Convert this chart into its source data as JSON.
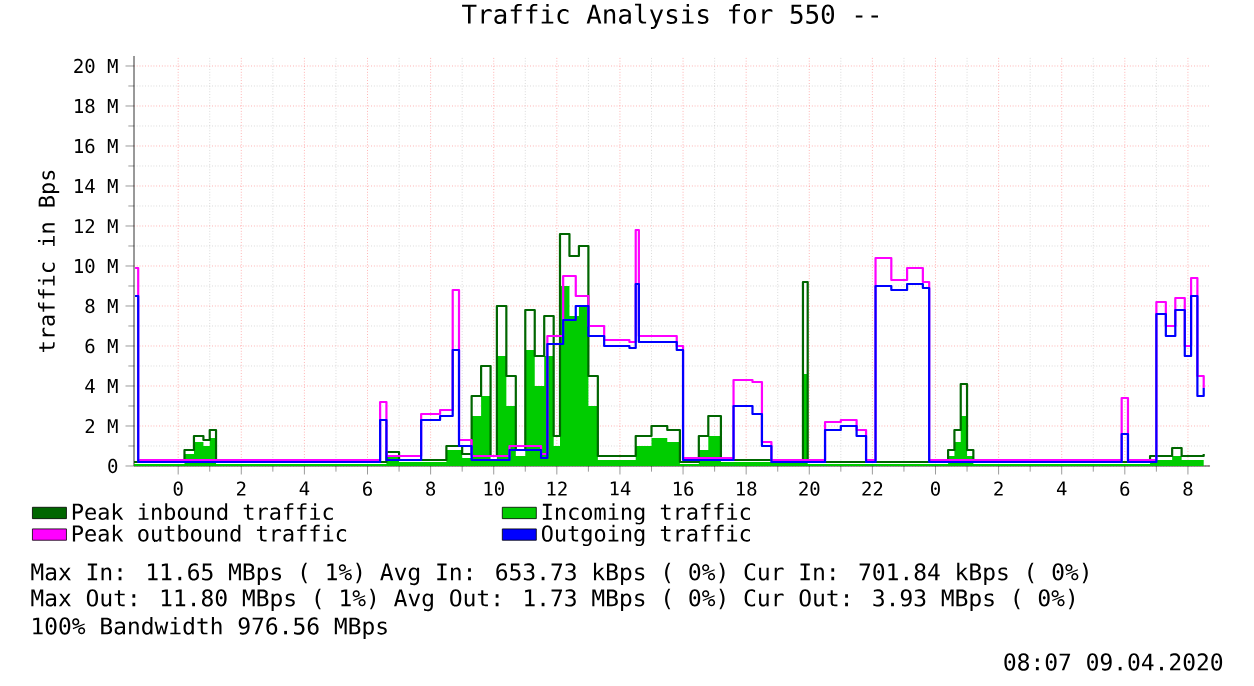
{
  "chart_data": {
    "type": "step",
    "title": "Traffic Analysis for 550 --",
    "ylabel": "traffic in Bps",
    "xlim": [
      "2020-04-07T22:36",
      "2020-04-09T08:42"
    ],
    "ylim": [
      0,
      20.5
    ],
    "xticks": [
      {
        "value": "2020-04-08T00:00",
        "label": "0"
      },
      {
        "value": "2020-04-08T02:00",
        "label": "2"
      },
      {
        "value": "2020-04-08T04:00",
        "label": "4"
      },
      {
        "value": "2020-04-08T06:00",
        "label": "6"
      },
      {
        "value": "2020-04-08T08:00",
        "label": "8"
      },
      {
        "value": "2020-04-08T10:00",
        "label": "10"
      },
      {
        "value": "2020-04-08T12:00",
        "label": "12"
      },
      {
        "value": "2020-04-08T14:00",
        "label": "14"
      },
      {
        "value": "2020-04-08T16:00",
        "label": "16"
      },
      {
        "value": "2020-04-08T18:00",
        "label": "18"
      },
      {
        "value": "2020-04-08T20:00",
        "label": "20"
      },
      {
        "value": "2020-04-08T22:00",
        "label": "22"
      },
      {
        "value": "2020-04-09T00:00",
        "label": "0"
      },
      {
        "value": "2020-04-09T02:00",
        "label": "2"
      },
      {
        "value": "2020-04-09T04:00",
        "label": "4"
      },
      {
        "value": "2020-04-09T06:00",
        "label": "6"
      },
      {
        "value": "2020-04-09T08:00",
        "label": "8"
      }
    ],
    "yticks": [
      0,
      {
        "value": 2,
        "label": "2 M"
      },
      {
        "value": 4,
        "label": "4 M"
      },
      {
        "value": 6,
        "label": "6 M"
      },
      {
        "value": 8,
        "label": "8 M"
      },
      {
        "value": 10,
        "label": "10 M"
      },
      {
        "value": 12,
        "label": "12 M"
      },
      {
        "value": 14,
        "label": "14 M"
      },
      {
        "value": 16,
        "label": "16 M"
      },
      {
        "value": 18,
        "label": "18 M"
      },
      {
        "value": 20,
        "label": "20 M"
      }
    ],
    "grid": true,
    "legend": "bottom left",
    "series": [
      {
        "name": "Peak inbound traffic",
        "color": "#006600",
        "x": [
          "2020-04-07T22:36",
          "2020-04-08T00:12",
          "2020-04-08T00:30",
          "2020-04-08T00:48",
          "2020-04-08T01:00",
          "2020-04-08T01:12",
          "2020-04-08T06:36",
          "2020-04-08T07:00",
          "2020-04-08T08:30",
          "2020-04-08T09:00",
          "2020-04-08T09:18",
          "2020-04-08T09:36",
          "2020-04-08T09:54",
          "2020-04-08T10:06",
          "2020-04-08T10:24",
          "2020-04-08T10:42",
          "2020-04-08T11:00",
          "2020-04-08T11:18",
          "2020-04-08T11:36",
          "2020-04-08T11:54",
          "2020-04-08T12:06",
          "2020-04-08T12:24",
          "2020-04-08T12:42",
          "2020-04-08T13:00",
          "2020-04-08T13:18",
          "2020-04-08T14:30",
          "2020-04-08T15:00",
          "2020-04-08T15:30",
          "2020-04-08T15:54",
          "2020-04-08T16:30",
          "2020-04-08T16:48",
          "2020-04-08T17:12",
          "2020-04-08T19:48",
          "2020-04-08T19:57",
          "2020-04-09T00:24",
          "2020-04-09T00:36",
          "2020-04-09T00:48",
          "2020-04-09T01:00",
          "2020-04-09T01:12",
          "2020-04-09T06:48",
          "2020-04-09T07:30",
          "2020-04-09T07:48",
          "2020-04-09T08:30"
        ],
        "values": [
          0.2,
          0.8,
          1.5,
          1.3,
          1.8,
          0.2,
          0.7,
          0.3,
          1.0,
          0.6,
          3.5,
          5.0,
          0.5,
          8.0,
          4.5,
          0.8,
          7.8,
          5.5,
          7.5,
          1.5,
          11.6,
          10.5,
          11.0,
          4.5,
          0.5,
          1.5,
          2.0,
          1.8,
          0.2,
          1.5,
          2.5,
          0.3,
          9.2,
          0.2,
          0.8,
          1.8,
          4.1,
          0.8,
          0.2,
          0.5,
          0.9,
          0.5,
          0.6
        ]
      },
      {
        "name": "Incoming traffic",
        "type": "area",
        "color": "#00cc00",
        "x": [
          "2020-04-07T22:36",
          "2020-04-08T00:12",
          "2020-04-08T00:30",
          "2020-04-08T00:48",
          "2020-04-08T01:00",
          "2020-04-08T01:12",
          "2020-04-08T06:36",
          "2020-04-08T07:00",
          "2020-04-08T08:30",
          "2020-04-08T09:00",
          "2020-04-08T09:18",
          "2020-04-08T09:36",
          "2020-04-08T09:54",
          "2020-04-08T10:06",
          "2020-04-08T10:24",
          "2020-04-08T10:42",
          "2020-04-08T11:00",
          "2020-04-08T11:18",
          "2020-04-08T11:36",
          "2020-04-08T11:54",
          "2020-04-08T12:06",
          "2020-04-08T12:24",
          "2020-04-08T12:42",
          "2020-04-08T13:00",
          "2020-04-08T13:18",
          "2020-04-08T14:30",
          "2020-04-08T15:00",
          "2020-04-08T15:30",
          "2020-04-08T15:54",
          "2020-04-08T16:30",
          "2020-04-08T16:48",
          "2020-04-08T17:12",
          "2020-04-08T19:48",
          "2020-04-08T19:57",
          "2020-04-09T00:24",
          "2020-04-09T00:36",
          "2020-04-09T00:48",
          "2020-04-09T01:00",
          "2020-04-09T01:12",
          "2020-04-09T06:48",
          "2020-04-09T07:30",
          "2020-04-09T07:48",
          "2020-04-09T08:30"
        ],
        "values": [
          0.1,
          0.6,
          1.2,
          1.0,
          1.4,
          0.1,
          0.5,
          0.2,
          0.8,
          0.4,
          2.5,
          3.5,
          0.3,
          5.5,
          3.0,
          0.5,
          5.8,
          4.0,
          5.5,
          1.0,
          9.0,
          7.5,
          8.0,
          3.0,
          0.3,
          1.0,
          1.4,
          1.2,
          0.1,
          0.8,
          1.5,
          0.2,
          4.6,
          0.1,
          0.5,
          1.2,
          2.5,
          0.5,
          0.1,
          0.3,
          0.5,
          0.3,
          0.4
        ]
      },
      {
        "name": "Peak outbound traffic",
        "color": "#ff00ff",
        "x": [
          "2020-04-07T22:38",
          "2020-04-07T22:44",
          "2020-04-08T06:24",
          "2020-04-08T06:36",
          "2020-04-08T07:42",
          "2020-04-08T08:18",
          "2020-04-08T08:42",
          "2020-04-08T08:54",
          "2020-04-08T09:18",
          "2020-04-08T10:30",
          "2020-04-08T11:30",
          "2020-04-08T11:42",
          "2020-04-08T12:12",
          "2020-04-08T12:36",
          "2020-04-08T13:00",
          "2020-04-08T13:30",
          "2020-04-08T14:18",
          "2020-04-08T14:30",
          "2020-04-08T14:36",
          "2020-04-08T15:12",
          "2020-04-08T15:48",
          "2020-04-08T16:00",
          "2020-04-08T17:36",
          "2020-04-08T18:12",
          "2020-04-08T18:30",
          "2020-04-08T18:48",
          "2020-04-08T20:30",
          "2020-04-08T21:00",
          "2020-04-08T21:30",
          "2020-04-08T21:48",
          "2020-04-08T22:06",
          "2020-04-08T22:36",
          "2020-04-08T23:06",
          "2020-04-08T23:36",
          "2020-04-08T23:48",
          "2020-04-09T05:54",
          "2020-04-09T06:06",
          "2020-04-09T07:00",
          "2020-04-09T07:18",
          "2020-04-09T07:36",
          "2020-04-09T07:54",
          "2020-04-09T08:06",
          "2020-04-09T08:18",
          "2020-04-09T08:30"
        ],
        "values": [
          9.9,
          0.3,
          3.2,
          0.5,
          2.6,
          2.8,
          8.8,
          1.3,
          0.5,
          1.0,
          0.6,
          6.5,
          9.5,
          8.5,
          7.0,
          6.3,
          6.2,
          11.8,
          6.5,
          6.5,
          6.0,
          0.4,
          4.3,
          4.2,
          1.2,
          0.3,
          2.2,
          2.3,
          1.8,
          0.3,
          10.4,
          9.3,
          9.9,
          9.2,
          0.3,
          3.4,
          0.3,
          8.2,
          7.0,
          8.4,
          6.0,
          9.4,
          4.5,
          3.9
        ]
      },
      {
        "name": "Outgoing traffic",
        "color": "#0000ff",
        "x": [
          "2020-04-07T22:38",
          "2020-04-07T22:44",
          "2020-04-08T06:24",
          "2020-04-08T06:36",
          "2020-04-08T07:42",
          "2020-04-08T08:18",
          "2020-04-08T08:42",
          "2020-04-08T08:54",
          "2020-04-08T09:18",
          "2020-04-08T10:30",
          "2020-04-08T11:30",
          "2020-04-08T11:42",
          "2020-04-08T12:12",
          "2020-04-08T12:36",
          "2020-04-08T13:00",
          "2020-04-08T13:30",
          "2020-04-08T14:18",
          "2020-04-08T14:30",
          "2020-04-08T14:36",
          "2020-04-08T15:12",
          "2020-04-08T15:48",
          "2020-04-08T16:00",
          "2020-04-08T17:36",
          "2020-04-08T18:12",
          "2020-04-08T18:30",
          "2020-04-08T18:48",
          "2020-04-08T20:30",
          "2020-04-08T21:00",
          "2020-04-08T21:30",
          "2020-04-08T21:48",
          "2020-04-08T22:06",
          "2020-04-08T22:36",
          "2020-04-08T23:06",
          "2020-04-08T23:36",
          "2020-04-08T23:48",
          "2020-04-09T05:54",
          "2020-04-09T06:06",
          "2020-04-09T07:00",
          "2020-04-09T07:18",
          "2020-04-09T07:36",
          "2020-04-09T07:54",
          "2020-04-09T08:06",
          "2020-04-09T08:18",
          "2020-04-09T08:30"
        ],
        "values": [
          8.5,
          0.2,
          2.3,
          0.3,
          2.3,
          2.5,
          5.8,
          1.0,
          0.3,
          0.8,
          0.4,
          6.1,
          7.3,
          8.0,
          6.5,
          6.0,
          5.9,
          9.1,
          6.2,
          6.2,
          5.8,
          0.3,
          3.0,
          2.6,
          1.0,
          0.2,
          1.8,
          2.0,
          1.5,
          0.2,
          9.0,
          8.8,
          9.1,
          8.9,
          0.2,
          1.6,
          0.2,
          7.6,
          6.5,
          7.8,
          5.5,
          8.5,
          3.5,
          3.9
        ]
      }
    ],
    "annotations": [
      "Max In: 11.65 MBps ( 1%) Avg In: 653.73 kBps ( 0%) Cur In: 701.84 kBps ( 0%)",
      "Max Out: 11.80 MBps ( 1%) Avg Out: 1.73 MBps ( 0%) Cur Out: 3.93 MBps ( 0%)",
      "100% Bandwidth 976.56 MBps",
      "08:07 09.04.2020"
    ]
  }
}
